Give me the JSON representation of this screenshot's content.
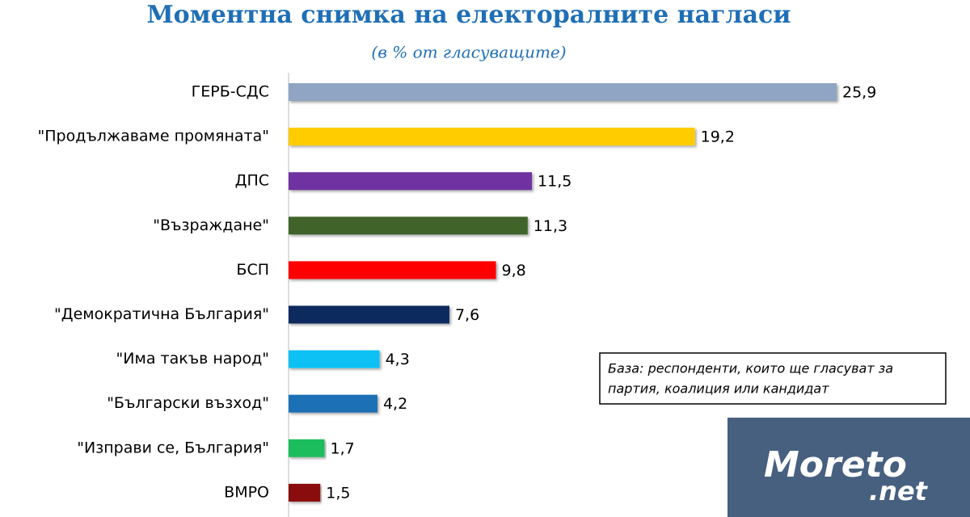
{
  "chart_data": {
    "type": "bar",
    "orientation": "horizontal",
    "title": "Моментна снимка на електоралните нагласи",
    "subtitle": "(в % от гласуващите)",
    "categories": [
      "ГЕРБ-СДС",
      "\"Продължаваме промяната\"",
      "ДПС",
      "\"Възраждане\"",
      "БСП",
      "\"Демократична България\"",
      "\"Има такъв народ\"",
      "\"Български възход\"",
      "\"Изправи се, България\"",
      "ВМРО"
    ],
    "values": [
      25.9,
      19.2,
      11.5,
      11.3,
      9.8,
      7.6,
      4.3,
      4.2,
      1.7,
      1.5
    ],
    "value_labels": [
      "25,9",
      "19,2",
      "11,5",
      "11,3",
      "9,8",
      "7,6",
      "4,3",
      "4,2",
      "1,7",
      "1,5"
    ],
    "colors": [
      "#8fa5c3",
      "#ffcc00",
      "#7030a0",
      "#41632a",
      "#ff0000",
      "#0d2b5e",
      "#11c1f5",
      "#1f6fb5",
      "#1ebd5c",
      "#8a1010"
    ],
    "annotation": [
      "База: респонденти, които ще гласуват за",
      "партия, коалиция или кандидат"
    ],
    "logo": [
      "Moreto",
      ".net"
    ]
  }
}
